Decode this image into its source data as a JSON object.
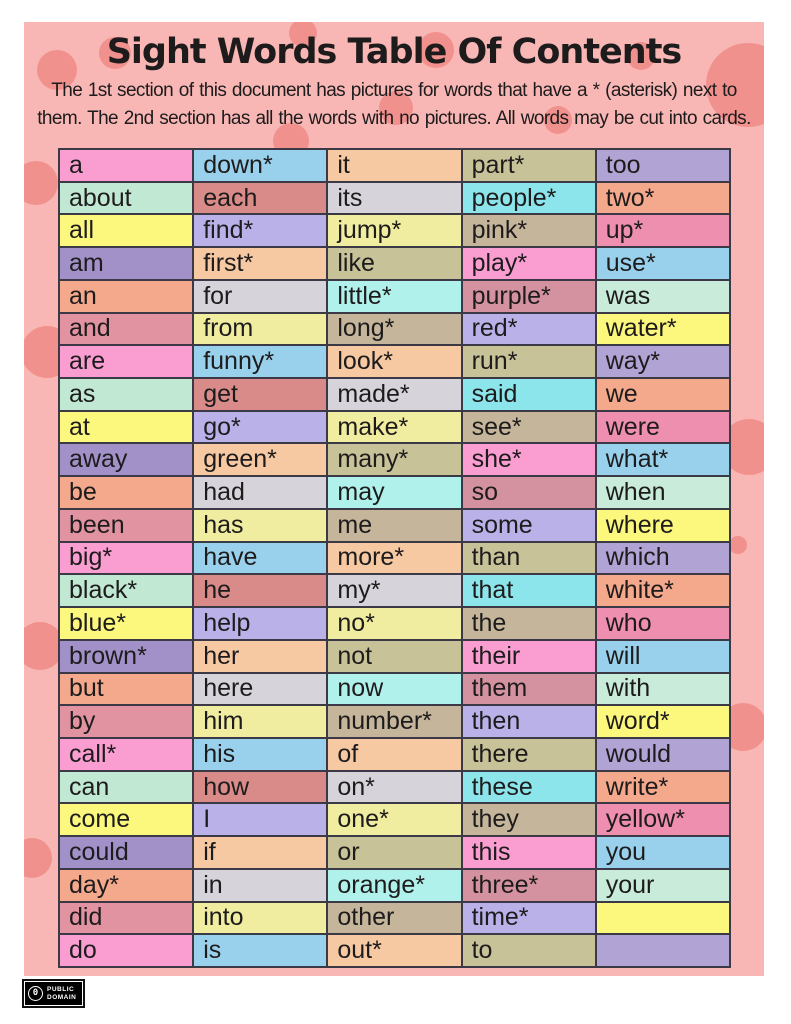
{
  "header": {
    "title": "Sight Words Table Of Contents",
    "description_line1": "The 1st section of this document has pictures for words that have a * (asterisk) next to",
    "description_line2": "them. The 2nd section has all the words with no pictures. All words may be cut into cards."
  },
  "badge": {
    "line1": "PUBLIC",
    "line2": "DOMAIN",
    "symbol": "0"
  },
  "colors": {
    "panel_background": "#f8b7b4",
    "polka_dot": "#f1918e",
    "grid_border": "#3b3945",
    "text": "#1d1b1c",
    "badge_background": "#000000",
    "badge_text": "#ffffff",
    "palette": {
      "hotpink": "#fa9ed1",
      "mint": "#c0e8d3",
      "yellow": "#fbf87d",
      "purple": "#a191c8",
      "salmon": "#f4a88c",
      "dustyrose": "#e293a1",
      "skyblue": "#99d1ec",
      "dustyred": "#d88b88",
      "periwinkle": "#bab1e9",
      "peach": "#f6c9a3",
      "lightgray": "#d6d4da",
      "paleyellow": "#f0eda0",
      "khaki": "#c8c298",
      "palecyan": "#b0f1eb",
      "cyan": "#8ce5ea",
      "tan": "#c5b69b",
      "mauve": "#d492a0",
      "rosepink": "#ef8fb0",
      "palemint": "#c9ecda",
      "lavender": "#b1a3d4"
    }
  },
  "table": {
    "columns": 5,
    "rows": [
      [
        {
          "w": "a",
          "c": "hotpink"
        },
        {
          "w": "down*",
          "c": "skyblue"
        },
        {
          "w": "it",
          "c": "peach"
        },
        {
          "w": "part*",
          "c": "khaki"
        },
        {
          "w": "too",
          "c": "lavender"
        }
      ],
      [
        {
          "w": "about",
          "c": "mint"
        },
        {
          "w": "each",
          "c": "dustyred"
        },
        {
          "w": "its",
          "c": "lightgray"
        },
        {
          "w": "people*",
          "c": "cyan"
        },
        {
          "w": "two*",
          "c": "salmon"
        }
      ],
      [
        {
          "w": "all",
          "c": "yellow"
        },
        {
          "w": "find*",
          "c": "periwinkle"
        },
        {
          "w": "jump*",
          "c": "paleyellow"
        },
        {
          "w": "pink*",
          "c": "tan"
        },
        {
          "w": "up*",
          "c": "rosepink"
        }
      ],
      [
        {
          "w": "am",
          "c": "purple"
        },
        {
          "w": "first*",
          "c": "peach"
        },
        {
          "w": "like",
          "c": "khaki"
        },
        {
          "w": "play*",
          "c": "hotpink"
        },
        {
          "w": "use*",
          "c": "skyblue"
        }
      ],
      [
        {
          "w": "an",
          "c": "salmon"
        },
        {
          "w": "for",
          "c": "lightgray"
        },
        {
          "w": "little*",
          "c": "palecyan"
        },
        {
          "w": "purple*",
          "c": "mauve"
        },
        {
          "w": "was",
          "c": "palemint"
        }
      ],
      [
        {
          "w": "and",
          "c": "dustyrose"
        },
        {
          "w": "from",
          "c": "paleyellow"
        },
        {
          "w": "long*",
          "c": "tan"
        },
        {
          "w": "red*",
          "c": "periwinkle"
        },
        {
          "w": "water*",
          "c": "yellow"
        }
      ],
      [
        {
          "w": "are",
          "c": "hotpink"
        },
        {
          "w": "funny*",
          "c": "skyblue"
        },
        {
          "w": "look*",
          "c": "peach"
        },
        {
          "w": "run*",
          "c": "khaki"
        },
        {
          "w": "way*",
          "c": "lavender"
        }
      ],
      [
        {
          "w": "as",
          "c": "mint"
        },
        {
          "w": "get",
          "c": "dustyred"
        },
        {
          "w": "made*",
          "c": "lightgray"
        },
        {
          "w": "said",
          "c": "cyan"
        },
        {
          "w": "we",
          "c": "salmon"
        }
      ],
      [
        {
          "w": "at",
          "c": "yellow"
        },
        {
          "w": "go*",
          "c": "periwinkle"
        },
        {
          "w": "make*",
          "c": "paleyellow"
        },
        {
          "w": "see*",
          "c": "tan"
        },
        {
          "w": "were",
          "c": "rosepink"
        }
      ],
      [
        {
          "w": "away",
          "c": "purple"
        },
        {
          "w": "green*",
          "c": "peach"
        },
        {
          "w": "many*",
          "c": "khaki"
        },
        {
          "w": "she*",
          "c": "hotpink"
        },
        {
          "w": "what*",
          "c": "skyblue"
        }
      ],
      [
        {
          "w": "be",
          "c": "salmon"
        },
        {
          "w": "had",
          "c": "lightgray"
        },
        {
          "w": "may",
          "c": "palecyan"
        },
        {
          "w": "so",
          "c": "mauve"
        },
        {
          "w": "when",
          "c": "palemint"
        }
      ],
      [
        {
          "w": "been",
          "c": "dustyrose"
        },
        {
          "w": "has",
          "c": "paleyellow"
        },
        {
          "w": "me",
          "c": "tan"
        },
        {
          "w": "some",
          "c": "periwinkle"
        },
        {
          "w": "where",
          "c": "yellow"
        }
      ],
      [
        {
          "w": "big*",
          "c": "hotpink"
        },
        {
          "w": "have",
          "c": "skyblue"
        },
        {
          "w": "more*",
          "c": "peach"
        },
        {
          "w": "than",
          "c": "khaki"
        },
        {
          "w": "which",
          "c": "lavender"
        }
      ],
      [
        {
          "w": "black*",
          "c": "mint"
        },
        {
          "w": "he",
          "c": "dustyred"
        },
        {
          "w": "my*",
          "c": "lightgray"
        },
        {
          "w": "that",
          "c": "cyan"
        },
        {
          "w": "white*",
          "c": "salmon"
        }
      ],
      [
        {
          "w": "blue*",
          "c": "yellow"
        },
        {
          "w": "help",
          "c": "periwinkle"
        },
        {
          "w": "no*",
          "c": "paleyellow"
        },
        {
          "w": "the",
          "c": "tan"
        },
        {
          "w": "who",
          "c": "rosepink"
        }
      ],
      [
        {
          "w": "brown*",
          "c": "purple"
        },
        {
          "w": "her",
          "c": "peach"
        },
        {
          "w": "not",
          "c": "khaki"
        },
        {
          "w": "their",
          "c": "hotpink"
        },
        {
          "w": "will",
          "c": "skyblue"
        }
      ],
      [
        {
          "w": "but",
          "c": "salmon"
        },
        {
          "w": "here",
          "c": "lightgray"
        },
        {
          "w": "now",
          "c": "palecyan"
        },
        {
          "w": "them",
          "c": "mauve"
        },
        {
          "w": "with",
          "c": "palemint"
        }
      ],
      [
        {
          "w": "by",
          "c": "dustyrose"
        },
        {
          "w": "him",
          "c": "paleyellow"
        },
        {
          "w": "number*",
          "c": "tan"
        },
        {
          "w": "then",
          "c": "periwinkle"
        },
        {
          "w": "word*",
          "c": "yellow"
        }
      ],
      [
        {
          "w": "call*",
          "c": "hotpink"
        },
        {
          "w": "his",
          "c": "skyblue"
        },
        {
          "w": "of",
          "c": "peach"
        },
        {
          "w": "there",
          "c": "khaki"
        },
        {
          "w": "would",
          "c": "lavender"
        }
      ],
      [
        {
          "w": "can",
          "c": "mint"
        },
        {
          "w": "how",
          "c": "dustyred"
        },
        {
          "w": "on*",
          "c": "lightgray"
        },
        {
          "w": "these",
          "c": "cyan"
        },
        {
          "w": "write*",
          "c": "salmon"
        }
      ],
      [
        {
          "w": "come",
          "c": "yellow"
        },
        {
          "w": "I",
          "c": "periwinkle"
        },
        {
          "w": "one*",
          "c": "paleyellow"
        },
        {
          "w": "they",
          "c": "tan"
        },
        {
          "w": "yellow*",
          "c": "rosepink"
        }
      ],
      [
        {
          "w": "could",
          "c": "purple"
        },
        {
          "w": "if",
          "c": "peach"
        },
        {
          "w": "or",
          "c": "khaki"
        },
        {
          "w": "this",
          "c": "hotpink"
        },
        {
          "w": "you",
          "c": "skyblue"
        }
      ],
      [
        {
          "w": "day*",
          "c": "salmon"
        },
        {
          "w": "in",
          "c": "lightgray"
        },
        {
          "w": "orange*",
          "c": "palecyan"
        },
        {
          "w": "three*",
          "c": "mauve"
        },
        {
          "w": "your",
          "c": "palemint"
        }
      ],
      [
        {
          "w": "did",
          "c": "dustyrose"
        },
        {
          "w": "into",
          "c": "paleyellow"
        },
        {
          "w": "other",
          "c": "tan"
        },
        {
          "w": "time*",
          "c": "periwinkle"
        },
        {
          "w": "",
          "c": "yellow"
        }
      ],
      [
        {
          "w": "do",
          "c": "hotpink"
        },
        {
          "w": "is",
          "c": "skyblue"
        },
        {
          "w": "out*",
          "c": "peach"
        },
        {
          "w": "to",
          "c": "khaki"
        },
        {
          "w": "",
          "c": "lavender"
        }
      ]
    ]
  }
}
